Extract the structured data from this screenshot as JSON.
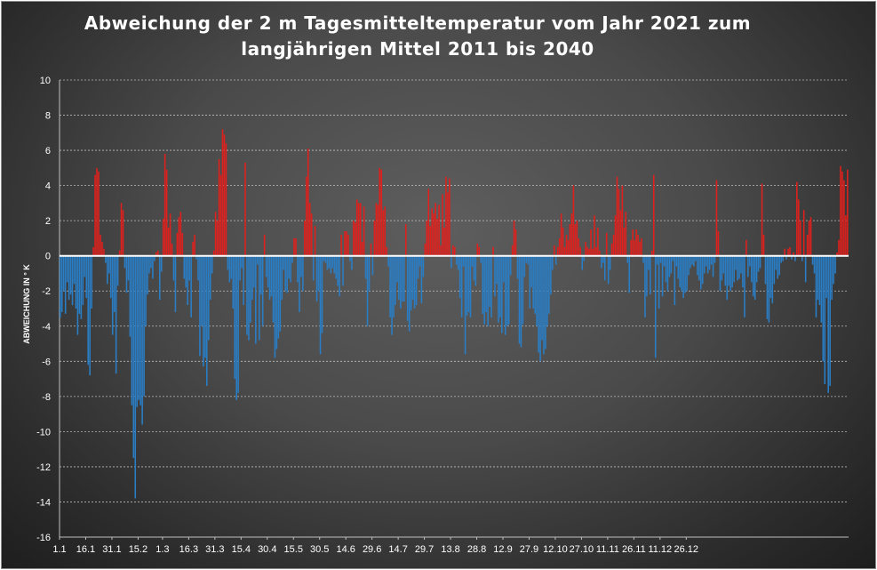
{
  "chart_data": {
    "type": "bar",
    "title": [
      "Abweichung der 2 m Tagesmitteltemperatur  vom Jahr 2021 zum",
      "langjährigen Mittel 2011 bis 2040"
    ],
    "ylabel": "ABWEICHUNG IN ° K",
    "xlabel": "",
    "ylim": [
      -16,
      10
    ],
    "yticks": [
      10,
      8,
      6,
      4,
      2,
      0,
      -2,
      -4,
      -6,
      -8,
      -10,
      -12,
      -14,
      -16
    ],
    "x_tick_labels": [
      {
        "day": 1,
        "label": "1.1"
      },
      {
        "day": 16,
        "label": "16.1"
      },
      {
        "day": 31,
        "label": "31.1"
      },
      {
        "day": 46,
        "label": "15.2"
      },
      {
        "day": 60,
        "label": "1.3"
      },
      {
        "day": 75,
        "label": "16.3"
      },
      {
        "day": 90,
        "label": "31.3"
      },
      {
        "day": 105,
        "label": "15.4"
      },
      {
        "day": 120,
        "label": "30.4"
      },
      {
        "day": 135,
        "label": "15.5"
      },
      {
        "day": 150,
        "label": "30.5"
      },
      {
        "day": 165,
        "label": "14.6"
      },
      {
        "day": 180,
        "label": "29.6"
      },
      {
        "day": 195,
        "label": "14.7"
      },
      {
        "day": 210,
        "label": "29.7"
      },
      {
        "day": 225,
        "label": "13.8"
      },
      {
        "day": 240,
        "label": "28.8"
      },
      {
        "day": 255,
        "label": "12.9"
      },
      {
        "day": 270,
        "label": "27.9"
      },
      {
        "day": 285,
        "label": "12.10"
      },
      {
        "day": 300,
        "label": "27.10"
      },
      {
        "day": 315,
        "label": "11.11"
      },
      {
        "day": 330,
        "label": "26.11"
      },
      {
        "day": 345,
        "label": "11.12"
      },
      {
        "day": 360,
        "label": "26.12"
      }
    ],
    "grid": "horizontal dotted",
    "colors": {
      "positive": "#e0201c",
      "negative": "#2a7ec6",
      "zero_line": "#ffffff",
      "grid": "#dcdcdc",
      "text": "#ffffff"
    },
    "values": [
      -3.5,
      -3.2,
      -2.0,
      -3.3,
      -1.5,
      -2.5,
      -2.2,
      -2.8,
      -1.6,
      -3.0,
      -4.5,
      -3.3,
      -3.6,
      -2.8,
      -1.2,
      -2.4,
      -6.2,
      -6.8,
      -3.0,
      0.5,
      4.6,
      5.0,
      4.8,
      1.2,
      0.8,
      0.4,
      -0.4,
      -1.6,
      -1.0,
      -2.4,
      -4.5,
      -3.2,
      -6.7,
      -1.7,
      0.3,
      3.0,
      2.6,
      -0.7,
      -2.1,
      -1.4,
      -4.6,
      -8.5,
      -11.5,
      -13.8,
      -8.6,
      -8.2,
      -8.5,
      -9.6,
      -8.0,
      -4.0,
      -2.2,
      -1.0,
      -0.7,
      -1.3,
      -0.3,
      0.2,
      0.3,
      -2.5,
      -0.9,
      2.1,
      5.8,
      4.9,
      1.6,
      2.4,
      0.7,
      -1.4,
      -3.2,
      1.3,
      2.2,
      2.5,
      1.3,
      -1.3,
      -1.8,
      -2.8,
      -1.4,
      -3.5,
      0.8,
      1.2,
      -0.2,
      -1.4,
      -5.7,
      -4.0,
      -6.3,
      -5.8,
      -7.4,
      -4.8,
      -2.5,
      -1.0,
      0.3,
      2.5,
      2.0,
      5.5,
      4.6,
      7.2,
      6.9,
      6.4,
      -0.8,
      -1.5,
      -1.3,
      -3.0,
      -7.0,
      -8.2,
      -7.8,
      -1.4,
      -0.7,
      -2.8,
      5.3,
      -4.5,
      -4.8,
      -3.8,
      -2.5,
      -1.8,
      -5.0,
      -0.5,
      -4.8,
      -2.2,
      -4.0,
      1.2,
      -1.2,
      -1.8,
      -2.5,
      -2.3,
      -3.8,
      -5.8,
      -5.3,
      -4.7,
      -4.3,
      -2.5,
      -0.8,
      -2.0,
      -2.1,
      -1.3,
      -1.5,
      -0.4,
      1.0,
      1.0,
      -1.5,
      -3.2,
      -1.2,
      -2.0,
      2.0,
      4.5,
      6.1,
      3.0,
      2.4,
      -1.4,
      1.7,
      -2.6,
      -2.0,
      -5.6,
      -4.4,
      -0.3,
      -0.4,
      -0.8,
      -0.7,
      -1.0,
      -0.7,
      -1.0,
      -1.3,
      -1.7,
      -2.3,
      1.2,
      -1.7,
      1.4,
      1.4,
      1.2,
      -0.3,
      -0.8,
      2.0,
      1.9,
      3.2,
      3.0,
      3.0,
      0.8,
      2.8,
      -1.3,
      -4.0,
      -2.0,
      0.7,
      -1.1,
      2.0,
      3.0,
      2.9,
      5.0,
      4.9,
      2.6,
      2.8,
      0.5,
      -0.6,
      -3.5,
      -4.5,
      -3.5,
      -2.8,
      -1.5,
      -2.5,
      -3.0,
      -2.6,
      -2.6,
      1.8,
      -3.7,
      -4.3,
      -3.1,
      -2.5,
      -3.0,
      -2.8,
      -1.3,
      -0.6,
      -2.7,
      -1.2,
      0.7,
      2.0,
      3.8,
      1.7,
      2.7,
      2.4,
      3.0,
      2.1,
      2.9,
      0.6,
      3.5,
      1.6,
      4.5,
      3.6,
      4.4,
      -0.7,
      0.6,
      0.5,
      -0.5,
      -0.8,
      -2.4,
      -3.5,
      -0.6,
      -5.6,
      -3.4,
      -3.2,
      -3.5,
      -0.6,
      -1.4,
      -1.7,
      0.7,
      0.5,
      -0.4,
      -3.3,
      -3.9,
      -3.2,
      -4.0,
      -2.9,
      -3.5,
      0.5,
      -2.3,
      -1.6,
      -3.8,
      -3.5,
      -4.4,
      -1.5,
      -4.5,
      -4.0,
      -3.9,
      -1.1,
      0.6,
      2.0,
      1.5,
      -1.3,
      -5.0,
      -5.2,
      -3.9,
      -1.2,
      -0.4,
      -0.5,
      -3.0,
      -1.8,
      -3.0,
      -3.3,
      -4.0,
      -5.5,
      -6.0,
      -4.8,
      -5.6,
      -5.3,
      -4.0,
      -3.3,
      -2.2,
      -0.8,
      0.6,
      -0.5,
      0.5,
      1.0,
      2.4,
      1.6,
      0.5,
      1.2,
      0.9,
      1.8,
      2.4,
      4.0,
      1.8,
      2.0,
      1.0,
      0.5,
      -0.8,
      -0.3,
      0.8,
      0.5,
      0.4,
      1.5,
      0.4,
      2.3,
      0.5,
      1.6,
      0.3,
      -0.7,
      -0.4,
      -1.4,
      1.3,
      -1.6,
      -0.8,
      0.7,
      1.2,
      2.3,
      4.5,
      3.8,
      2.6,
      4.0,
      1.6,
      2.5,
      -0.4,
      -2.1,
      0.9,
      1.5,
      0.9,
      1.5,
      1.2,
      0.8,
      1.0,
      -0.4,
      -3.5,
      -2.3,
      -0.8,
      -2.2,
      0.3,
      4.6,
      -5.8,
      -0.5,
      -3.0,
      -0.4,
      -2.3,
      -0.6,
      -1.5,
      -2.0,
      -1.2,
      -1.0,
      -0.3,
      -2.8,
      -0.6,
      -1.3,
      -1.8,
      -2.0,
      -2.4,
      -2.1,
      -2.0,
      -1.1,
      -0.7,
      -0.5,
      -0.6,
      -0.3,
      -1.1,
      -1.4,
      -1.9,
      -1.6,
      -1.0,
      -0.6,
      -1.0,
      -0.8,
      -0.5,
      -1.2,
      -0.4,
      4.3,
      1.4,
      -2.0,
      -1.4,
      -1.0,
      -1.7,
      -2.5,
      -1.7,
      -2.0,
      -1.8,
      -1.5,
      -0.8,
      -1.4,
      -1.3,
      -1.0,
      -1.8,
      -3.5,
      0.9,
      -1.2,
      -0.6,
      -1.5,
      -2.3,
      -2.5,
      -1.5,
      -0.9,
      -0.7,
      4.1,
      1.2,
      -1.6,
      -3.6,
      -3.8,
      -2.4,
      -2.7,
      -1.6,
      -0.8,
      -1.3,
      -1.1,
      -0.4,
      -0.3,
      0.4,
      -0.2,
      0.4,
      0.5,
      -0.2,
      0.2,
      -0.3,
      4.2,
      3.2,
      2.0,
      -0.3,
      2.6,
      -1.5,
      1.2,
      2.0,
      2.2,
      -0.5,
      -1.0,
      -3.5,
      -2.5,
      -2.8,
      -3.8,
      -6.0,
      -7.3,
      -2.4,
      -7.8,
      -7.4,
      -2.5,
      -1.6,
      -1.0,
      0.2,
      0.9,
      5.1,
      4.8,
      4.3,
      2.3,
      4.9
    ]
  }
}
